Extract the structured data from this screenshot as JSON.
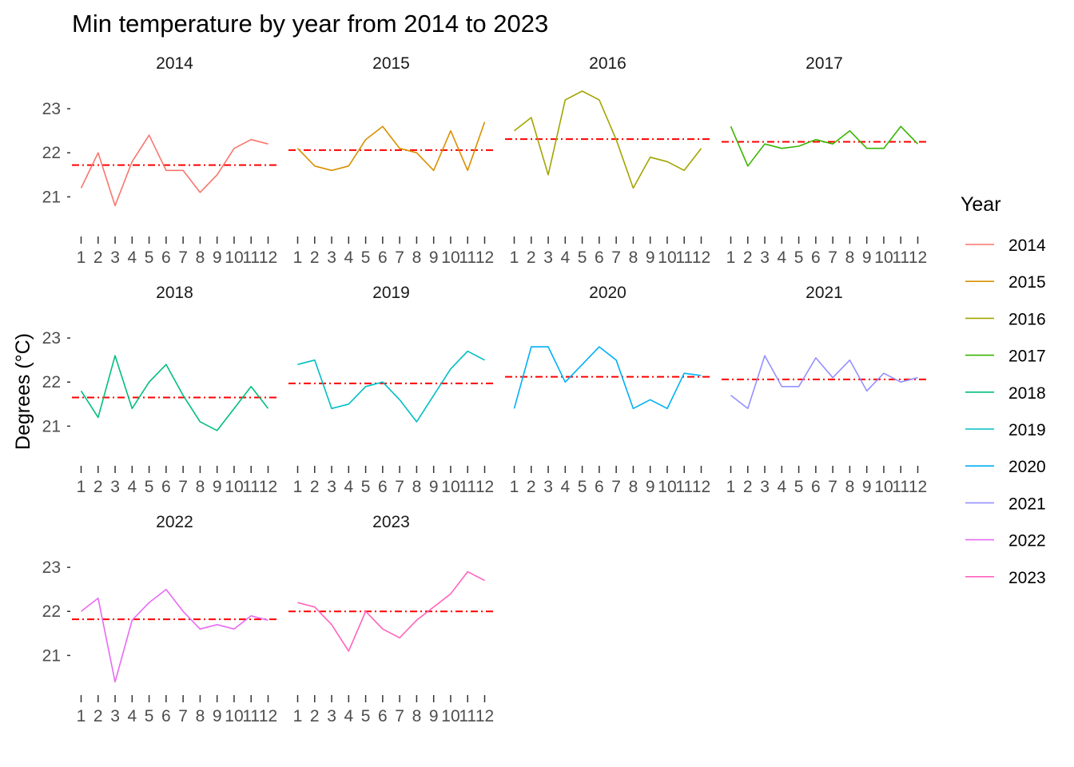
{
  "chart_data": {
    "type": "line",
    "title": "Min temperature by year from 2014 to 2023",
    "xlabel": "",
    "ylabel": "Degrees (°C)",
    "x": [
      1,
      2,
      3,
      4,
      5,
      6,
      7,
      8,
      9,
      10,
      11,
      12
    ],
    "x_tick_labels": [
      "1",
      "2",
      "3",
      "4",
      "5",
      "6",
      "7",
      "8",
      "9",
      "10",
      "11",
      "12"
    ],
    "ylim": [
      20.3,
      23.6
    ],
    "y_ticks": [
      21,
      22,
      23
    ],
    "y_tick_labels": [
      "21",
      "22",
      "23"
    ],
    "grid": false,
    "facets": "wrap by year, 4 columns",
    "legend": {
      "title": "Year",
      "position": "right"
    },
    "reference_line": {
      "description": "yearly mean",
      "color": "#ff0000",
      "style": "dotdash"
    },
    "series": [
      {
        "name": "2014",
        "color": "#F8766D",
        "values": [
          21.2,
          22.0,
          20.8,
          21.8,
          22.4,
          21.6,
          21.6,
          21.1,
          21.5,
          22.1,
          22.3,
          22.2
        ],
        "mean": 21.72
      },
      {
        "name": "2015",
        "color": "#D89000",
        "values": [
          22.1,
          21.7,
          21.6,
          21.7,
          22.3,
          22.6,
          22.1,
          22.0,
          21.6,
          22.5,
          21.6,
          22.7
        ],
        "mean": 22.06
      },
      {
        "name": "2016",
        "color": "#A3A500",
        "values": [
          22.5,
          22.8,
          21.5,
          23.2,
          23.4,
          23.2,
          22.3,
          21.2,
          21.9,
          21.8,
          21.6,
          22.1
        ],
        "mean": 22.31
      },
      {
        "name": "2017",
        "color": "#39B600",
        "values": [
          22.6,
          21.7,
          22.2,
          22.1,
          22.15,
          22.3,
          22.2,
          22.5,
          22.1,
          22.1,
          22.6,
          22.2
        ],
        "mean": 22.25
      },
      {
        "name": "2018",
        "color": "#00BF7D",
        "values": [
          21.8,
          21.2,
          22.6,
          21.4,
          22.0,
          22.4,
          21.7,
          21.1,
          20.9,
          21.4,
          21.9,
          21.4
        ],
        "mean": 21.65
      },
      {
        "name": "2019",
        "color": "#00BFC4",
        "values": [
          22.4,
          22.5,
          21.4,
          21.5,
          21.9,
          22.0,
          21.6,
          21.1,
          21.7,
          22.3,
          22.7,
          22.5
        ],
        "mean": 21.97
      },
      {
        "name": "2020",
        "color": "#00B0F6",
        "values": [
          21.4,
          22.8,
          22.8,
          22.0,
          22.4,
          22.8,
          22.5,
          21.4,
          21.6,
          21.4,
          22.2,
          22.15
        ],
        "mean": 22.12
      },
      {
        "name": "2021",
        "color": "#9590FF",
        "values": [
          21.7,
          21.4,
          22.6,
          21.9,
          21.9,
          22.55,
          22.1,
          22.5,
          21.8,
          22.2,
          22.0,
          22.1
        ],
        "mean": 22.06
      },
      {
        "name": "2022",
        "color": "#E76BF3",
        "values": [
          22.0,
          22.3,
          20.4,
          21.8,
          22.2,
          22.5,
          22.0,
          21.6,
          21.7,
          21.6,
          21.9,
          21.8
        ],
        "mean": 21.82
      },
      {
        "name": "2023",
        "color": "#FF62BC",
        "values": [
          22.2,
          22.1,
          21.7,
          21.1,
          22.0,
          21.6,
          21.4,
          21.8,
          22.1,
          22.4,
          22.9,
          22.7
        ],
        "mean": 22.0
      }
    ]
  }
}
